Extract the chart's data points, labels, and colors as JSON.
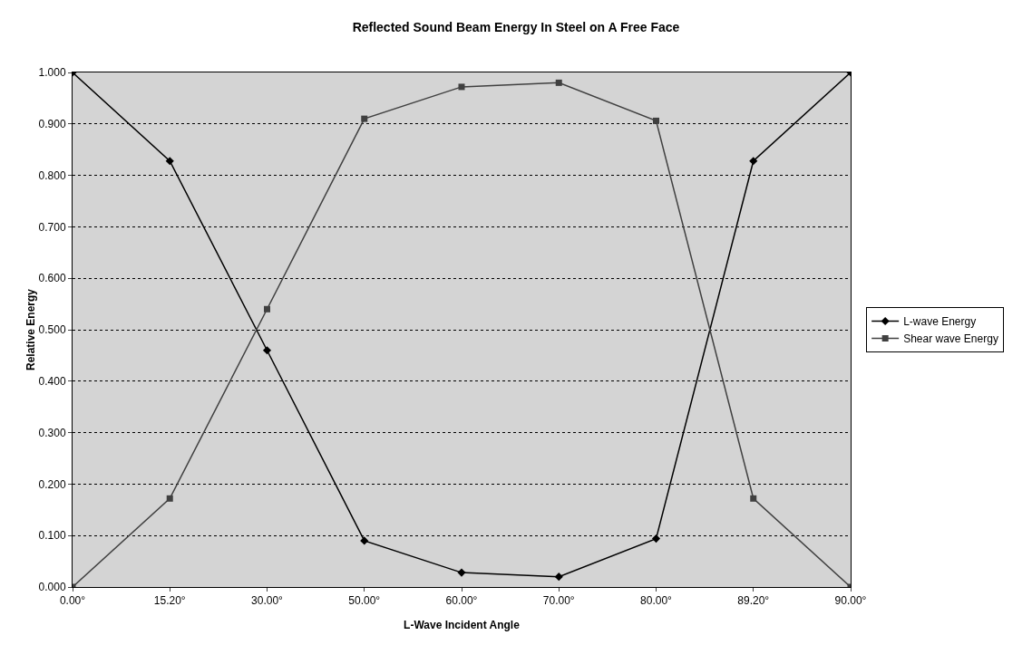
{
  "chart_data": {
    "type": "line",
    "title": "Reflected Sound Beam Energy In Steel on A Free Face",
    "xlabel": "L-Wave Incident Angle",
    "ylabel": "Relative Energy",
    "categories": [
      "0.00°",
      "15.20°",
      "30.00°",
      "50.00°",
      "60.00°",
      "70.00°",
      "80.00°",
      "89.20°",
      "90.00°"
    ],
    "series": [
      {
        "name": "L-wave Energy",
        "color": "#000000",
        "marker": "diamond",
        "values": [
          1.0,
          0.828,
          0.46,
          0.09,
          0.028,
          0.02,
          0.094,
          0.828,
          1.0
        ]
      },
      {
        "name": "Shear wave Energy",
        "color": "#404040",
        "marker": "square",
        "values": [
          0.0,
          0.172,
          0.54,
          0.91,
          0.972,
          0.98,
          0.906,
          0.172,
          0.0
        ]
      }
    ],
    "ylim": [
      0,
      1
    ],
    "yticks": [
      {
        "value": 0,
        "label": "0.000"
      },
      {
        "value": 0.1,
        "label": "0.100"
      },
      {
        "value": 0.2,
        "label": "0.200"
      },
      {
        "value": 0.3,
        "label": "0.300"
      },
      {
        "value": 0.4,
        "label": "0.400"
      },
      {
        "value": 0.5,
        "label": "0.500"
      },
      {
        "value": 0.6,
        "label": "0.600"
      },
      {
        "value": 0.7,
        "label": "0.700"
      },
      {
        "value": 0.8,
        "label": "0.800"
      },
      {
        "value": 0.9,
        "label": "0.900"
      },
      {
        "value": 1,
        "label": "1.000"
      }
    ],
    "grid": "y",
    "legend": "right"
  }
}
